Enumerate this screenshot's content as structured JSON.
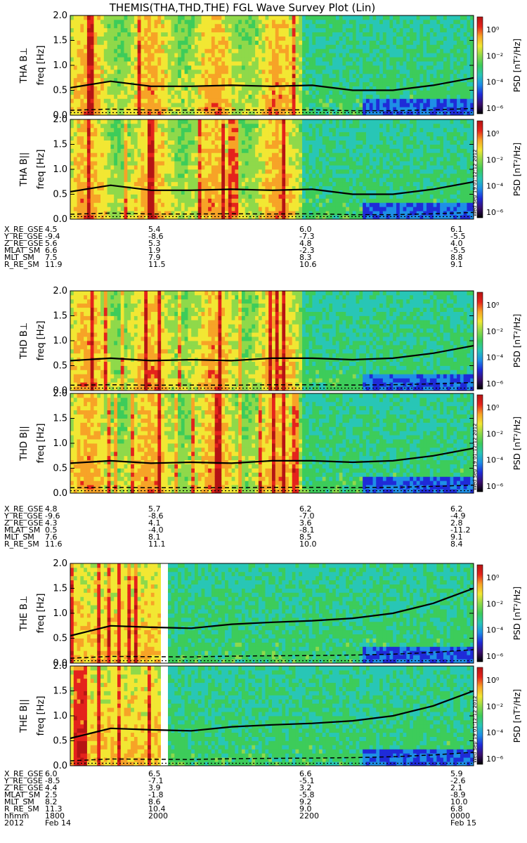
{
  "title": "THEMIS(THA,THD,THE) FGL Wave Survey Plot (Lin)",
  "colorbar": {
    "label": "PSD [nT²/Hz]",
    "ticks": [
      "10⁰",
      "10⁻²",
      "10⁻⁴",
      "10⁻⁶"
    ],
    "scale": "log",
    "colors": [
      "#000000",
      "#3a0f6e",
      "#1f2bd8",
      "#1e8fe6",
      "#28c6b6",
      "#3dcc5a",
      "#8fd94a",
      "#f2e733",
      "#f7a327",
      "#e4231c",
      "#b51414"
    ]
  },
  "stamp": "Wed Sep 19 01:12:12 2012",
  "panels": [
    {
      "id": "tha-bperp",
      "ylabel": "THA B⊥",
      "ylabel2": "freq [Hz]"
    },
    {
      "id": "tha-bpar",
      "ylabel": "THA B||",
      "ylabel2": "freq [Hz]"
    },
    {
      "id": "thd-bperp",
      "ylabel": "THD B⊥",
      "ylabel2": "freq [Hz]"
    },
    {
      "id": "thd-bpar",
      "ylabel": "THD B||",
      "ylabel2": "freq [Hz]"
    },
    {
      "id": "the-bperp",
      "ylabel": "THE B⊥",
      "ylabel2": "freq [Hz]"
    },
    {
      "id": "the-bpar",
      "ylabel": "THE B||",
      "ylabel2": "freq [Hz]"
    }
  ],
  "ephemeris": [
    {
      "probe": "THA",
      "rows": [
        {
          "label": "X_RE_GSE",
          "values": [
            "4.5",
            "5.4",
            "6.0",
            "6.1"
          ]
        },
        {
          "label": "Y_RE_GSE",
          "values": [
            "-9.4",
            "-8.6",
            "-7.3",
            "-5.5"
          ]
        },
        {
          "label": "Z_RE_GSE",
          "values": [
            "5.6",
            "5.3",
            "4.8",
            "4.0"
          ]
        },
        {
          "label": "MLAT_SM",
          "values": [
            "6.6",
            "1.9",
            "-2.3",
            "-5.5"
          ]
        },
        {
          "label": "MLT_SM",
          "values": [
            "7.5",
            "7.9",
            "8.3",
            "8.8"
          ]
        },
        {
          "label": "R_RE_SM",
          "values": [
            "11.9",
            "11.5",
            "10.6",
            "9.1"
          ]
        }
      ]
    },
    {
      "probe": "THD",
      "rows": [
        {
          "label": "X_RE_GSE",
          "values": [
            "4.8",
            "5.7",
            "6.2",
            "6.2"
          ]
        },
        {
          "label": "Y_RE_GSE",
          "values": [
            "-9.6",
            "-8.6",
            "-7.0",
            "-4.9"
          ]
        },
        {
          "label": "Z_RE_GSE",
          "values": [
            "4.3",
            "4.1",
            "3.6",
            "2.8"
          ]
        },
        {
          "label": "MLAT_SM",
          "values": [
            "0.5",
            "-4.0",
            "-8.1",
            "-11.2"
          ]
        },
        {
          "label": "MLT_SM",
          "values": [
            "7.6",
            "8.1",
            "8.5",
            "9.1"
          ]
        },
        {
          "label": "R_RE_SM",
          "values": [
            "11.6",
            "11.1",
            "10.0",
            "8.4"
          ]
        }
      ]
    },
    {
      "probe": "THE",
      "rows": [
        {
          "label": "X_RE_GSE",
          "values": [
            "6.0",
            "6.5",
            "6.6",
            "5.9"
          ]
        },
        {
          "label": "Y_RE_GSE",
          "values": [
            "-8.5",
            "-7.1",
            "-5.1",
            "-2.6"
          ]
        },
        {
          "label": "Z_RE_GSE",
          "values": [
            "4.4",
            "3.9",
            "3.2",
            "2.1"
          ]
        },
        {
          "label": "MLAT_SM",
          "values": [
            "2.5",
            "-1.8",
            "-5.8",
            "-8.9"
          ]
        },
        {
          "label": "MLT_SM",
          "values": [
            "8.2",
            "8.6",
            "9.2",
            "10.0"
          ]
        },
        {
          "label": "R_RE_SM",
          "values": [
            "11.3",
            "10.4",
            "9.0",
            "6.8"
          ]
        },
        {
          "label": "hhmm",
          "values": [
            "1800",
            "2000",
            "2200",
            "0000"
          ]
        },
        {
          "label": "2012",
          "values": [
            "Feb 14",
            "",
            "",
            "Feb 15"
          ]
        }
      ]
    }
  ],
  "chart_data": {
    "type": "heatmap",
    "title": "THEMIS(THA,THD,THE) FGL Wave Survey Plot (Lin)",
    "x": [
      "1800",
      "2000",
      "2200",
      "0000"
    ],
    "xlabel": "hhmm",
    "ylabel": "freq [Hz]",
    "ylim": [
      0,
      2.0
    ],
    "yticks": [
      "0.0",
      "0.5",
      "1.0",
      "1.5",
      "2.0"
    ],
    "zscale": "log",
    "zticks": [
      "10⁰",
      "10⁻²",
      "10⁻⁴",
      "10⁻⁶"
    ],
    "zlabel": "PSD [nT²/Hz]",
    "series": [
      {
        "name": "THA B⊥",
        "fce_line_x": [
          0,
          0.1,
          0.2,
          0.3,
          0.4,
          0.5,
          0.6,
          0.7,
          0.8,
          0.9,
          1.0
        ],
        "fce_line_y": [
          0.55,
          0.68,
          0.58,
          0.58,
          0.6,
          0.58,
          0.6,
          0.5,
          0.5,
          0.6,
          0.75
        ]
      },
      {
        "name": "THA B||",
        "fce_line_x": [
          0,
          0.1,
          0.2,
          0.3,
          0.4,
          0.5,
          0.6,
          0.7,
          0.8,
          0.9,
          1.0
        ],
        "fce_line_y": [
          0.55,
          0.68,
          0.58,
          0.58,
          0.6,
          0.58,
          0.6,
          0.5,
          0.5,
          0.6,
          0.75
        ]
      },
      {
        "name": "THD B⊥",
        "fce_line_x": [
          0,
          0.1,
          0.2,
          0.3,
          0.4,
          0.5,
          0.6,
          0.7,
          0.8,
          0.9,
          1.0
        ],
        "fce_line_y": [
          0.6,
          0.65,
          0.6,
          0.62,
          0.6,
          0.65,
          0.65,
          0.62,
          0.65,
          0.75,
          0.9
        ]
      },
      {
        "name": "THD B||",
        "fce_line_x": [
          0,
          0.1,
          0.2,
          0.3,
          0.4,
          0.5,
          0.6,
          0.7,
          0.8,
          0.9,
          1.0
        ],
        "fce_line_y": [
          0.6,
          0.65,
          0.6,
          0.62,
          0.6,
          0.65,
          0.65,
          0.62,
          0.65,
          0.75,
          0.9
        ]
      },
      {
        "name": "THE B⊥",
        "fce_line_x": [
          0,
          0.1,
          0.2,
          0.3,
          0.4,
          0.5,
          0.6,
          0.7,
          0.8,
          0.9,
          1.0
        ],
        "fce_line_y": [
          0.55,
          0.75,
          0.72,
          0.7,
          0.78,
          0.82,
          0.85,
          0.9,
          1.0,
          1.2,
          1.5
        ]
      },
      {
        "name": "THE B||",
        "fce_line_x": [
          0,
          0.1,
          0.2,
          0.3,
          0.4,
          0.5,
          0.6,
          0.7,
          0.8,
          0.9,
          1.0
        ],
        "fce_line_y": [
          0.55,
          0.75,
          0.72,
          0.7,
          0.78,
          0.82,
          0.85,
          0.9,
          1.0,
          1.2,
          1.5
        ]
      }
    ],
    "grid": false,
    "legend": "right colorbar"
  }
}
